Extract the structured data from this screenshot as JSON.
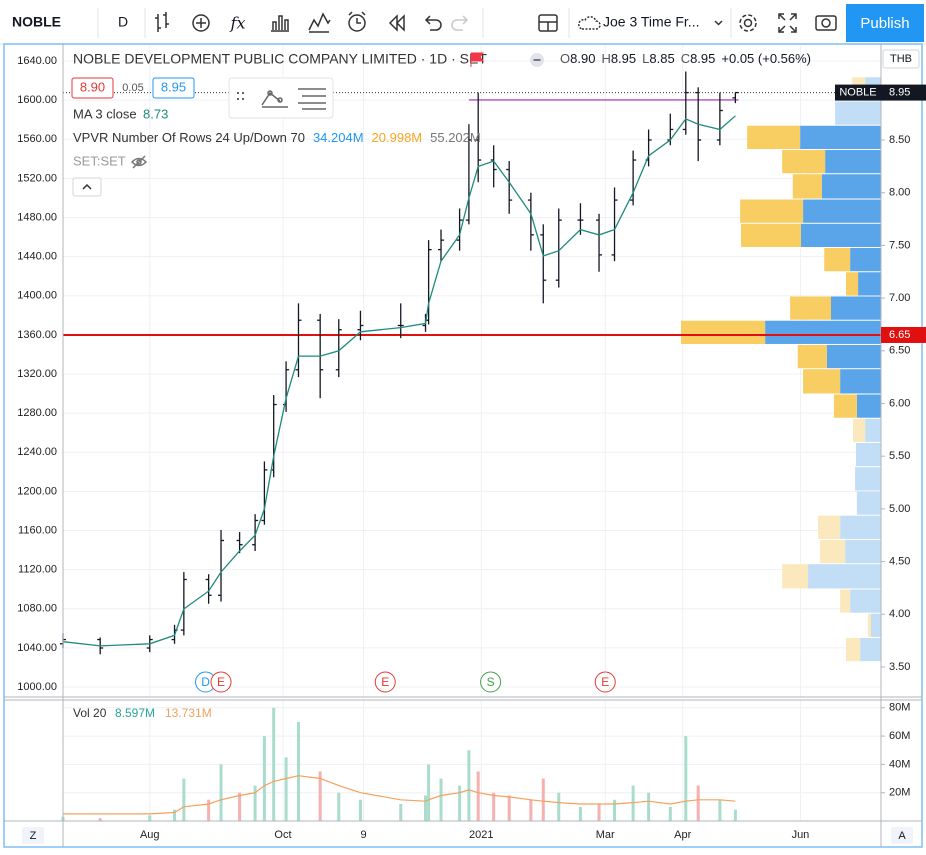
{
  "toolbar": {
    "symbol": "NOBLE",
    "interval": "D",
    "indicators_icon": "fx",
    "layout_name": "Joe 3 Time Fr...",
    "publish": "Publish"
  },
  "legend": {
    "title": "NOBLE DEVELOPMENT PUBLIC COMPANY LIMITED · 1D · SET",
    "ohlc": [
      [
        "O",
        "8.90"
      ],
      [
        "H",
        "8.95"
      ],
      [
        "L",
        "8.85"
      ],
      [
        "C",
        "8.95"
      ]
    ],
    "change": "+0.05 (+0.56%)",
    "bid": "8.90",
    "spread": "0.05",
    "ask": "8.95",
    "ma_name": "MA 3 close",
    "ma_value": "8.73",
    "vpvr_name": "VPVR Number Of Rows 24 Up/Down 70",
    "vpvr_up": "34.204M",
    "vpvr_down": "20.998M",
    "vpvr_total": "55.202M",
    "compare": "SET:SET",
    "currency": "THB",
    "vol_name": "Vol 20",
    "vol_value": "8.597M",
    "vol_ma": "13.731M"
  },
  "corner_left": "Z",
  "corner_right": "A",
  "chart_data": [
    {
      "type": "ohlc",
      "symbol_tag": "NOBLE",
      "last_price": 8.95,
      "bar_color": "#131722",
      "ma_color": "#1f8a7e",
      "x": [
        0,
        12,
        28,
        36,
        39,
        47,
        51,
        57,
        62,
        65,
        68,
        72,
        76,
        83,
        89,
        96,
        109,
        117,
        118,
        122,
        128,
        131,
        134,
        139,
        144,
        151,
        155,
        160,
        167,
        173,
        178,
        184,
        189,
        196,
        201,
        205,
        212,
        217
      ],
      "open": [
        3.72,
        3.76,
        3.68,
        3.76,
        3.85,
        4.33,
        4.18,
        4.7,
        4.66,
        4.89,
        5.37,
        5.99,
        6.32,
        6.79,
        6.32,
        6.7,
        6.74,
        6.74,
        6.79,
        7.46,
        7.55,
        7.74,
        8.5,
        8.31,
        8.22,
        7.93,
        7.6,
        7.17,
        7.74,
        7.74,
        7.41,
        7.93,
        8.31,
        8.5,
        8.6,
        8.95,
        8.5,
        8.9
      ],
      "high": [
        3.82,
        3.78,
        3.8,
        3.9,
        4.4,
        4.38,
        4.8,
        4.78,
        4.95,
        5.45,
        6.08,
        6.4,
        6.95,
        6.85,
        6.8,
        6.88,
        6.95,
        6.85,
        7.55,
        7.65,
        7.85,
        8.65,
        8.95,
        8.45,
        8.3,
        8.0,
        7.7,
        7.85,
        7.9,
        7.8,
        8.05,
        8.4,
        8.6,
        8.75,
        9.15,
        9.0,
        8.95,
        8.95
      ],
      "low": [
        3.68,
        3.62,
        3.64,
        3.72,
        3.8,
        4.1,
        4.12,
        4.58,
        4.6,
        4.85,
        5.3,
        5.92,
        6.25,
        6.05,
        6.25,
        6.6,
        6.62,
        6.68,
        6.75,
        7.35,
        7.45,
        7.7,
        8.1,
        8.05,
        7.8,
        7.45,
        6.95,
        7.1,
        7.6,
        7.25,
        7.35,
        7.88,
        8.25,
        8.45,
        8.55,
        8.3,
        8.45,
        8.85
      ],
      "close": [
        3.76,
        3.68,
        3.76,
        3.85,
        4.33,
        4.18,
        4.7,
        4.66,
        4.89,
        5.37,
        5.99,
        6.32,
        6.79,
        6.32,
        6.7,
        6.74,
        6.74,
        6.79,
        7.46,
        7.55,
        7.74,
        8.5,
        8.31,
        8.22,
        7.93,
        7.6,
        7.17,
        7.74,
        7.74,
        7.41,
        7.93,
        8.31,
        8.5,
        8.6,
        8.95,
        8.5,
        8.78,
        8.95
      ],
      "ma": [
        3.74,
        3.7,
        3.72,
        3.8,
        4.05,
        4.22,
        4.4,
        4.6,
        4.75,
        5.0,
        5.5,
        6.05,
        6.45,
        6.45,
        6.5,
        6.68,
        6.72,
        6.76,
        6.95,
        7.35,
        7.6,
        7.95,
        8.25,
        8.3,
        8.1,
        7.8,
        7.4,
        7.45,
        7.65,
        7.6,
        7.65,
        8.0,
        8.35,
        8.5,
        8.7,
        8.65,
        8.6,
        8.73
      ],
      "xlim": [
        0,
        264
      ],
      "xticks": [
        {
          "value": 28,
          "label": "Aug"
        },
        {
          "value": 71,
          "label": "Oct"
        },
        {
          "value": 97,
          "label": "9"
        },
        {
          "value": 135,
          "label": "2021"
        },
        {
          "value": 175,
          "label": "Mar"
        },
        {
          "value": 200,
          "label": "Apr"
        },
        {
          "value": 238,
          "label": "Jun"
        }
      ],
      "ylim": [
        3.215,
        9.392
      ],
      "yticks": [
        {
          "value": 3.5,
          "label": "3.50"
        },
        {
          "value": 4,
          "label": "4.00"
        },
        {
          "value": 4.5,
          "label": "4.50"
        },
        {
          "value": 5,
          "label": "5.00"
        },
        {
          "value": 5.5,
          "label": "5.50"
        },
        {
          "value": 6,
          "label": "6.00"
        },
        {
          "value": 6.5,
          "label": "6.50"
        },
        {
          "value": 7,
          "label": "7.00"
        },
        {
          "value": 7.5,
          "label": "7.50"
        },
        {
          "value": 8,
          "label": "8.00"
        },
        {
          "value": 8.5,
          "label": "8.50"
        }
      ],
      "y2lim": [
        989.8,
        1655.4
      ],
      "y2ticks": [
        {
          "value": 1000,
          "label": "1000.00"
        },
        {
          "value": 1040,
          "label": "1040.00"
        },
        {
          "value": 1080,
          "label": "1080.00"
        },
        {
          "value": 1120,
          "label": "1120.00"
        },
        {
          "value": 1160,
          "label": "1160.00"
        },
        {
          "value": 1200,
          "label": "1200.00"
        },
        {
          "value": 1240,
          "label": "1240.00"
        },
        {
          "value": 1280,
          "label": "1280.00"
        },
        {
          "value": 1320,
          "label": "1320.00"
        },
        {
          "value": 1360,
          "label": "1360.00"
        },
        {
          "value": 1400,
          "label": "1400.00"
        },
        {
          "value": 1440,
          "label": "1440.00"
        },
        {
          "value": 1480,
          "label": "1480.00"
        },
        {
          "value": 1520,
          "label": "1520.00"
        },
        {
          "value": 1560,
          "label": "1560.00"
        },
        {
          "value": 1600,
          "label": "1600.00"
        },
        {
          "value": 1640,
          "label": "1640.00"
        }
      ],
      "grid": true,
      "hlines": [
        {
          "value": 6.65,
          "color": "#e01010"
        },
        {
          "value": 8.88,
          "color": "#9c27b0",
          "x": [
            131,
            218
          ]
        }
      ],
      "events": [
        {
          "label": "D",
          "x": 46,
          "color": "#2196f3"
        },
        {
          "label": "E",
          "x": 51,
          "color": "#e53935"
        },
        {
          "label": "E",
          "x": 104,
          "color": "#e53935"
        },
        {
          "label": "S",
          "x": 138,
          "color": "#43a047"
        },
        {
          "label": "E",
          "x": 175,
          "color": "#e53935"
        }
      ],
      "volume_profile": {
        "bins": [
          3.55,
          3.78,
          4.01,
          4.24,
          4.48,
          4.71,
          4.94,
          5.17,
          5.4,
          5.63,
          5.86,
          6.09,
          6.33,
          6.56,
          6.79,
          7.02,
          7.25,
          7.48,
          7.71,
          7.94,
          8.18,
          8.41,
          8.64,
          8.87,
          9.1
        ],
        "up": [
          0.71,
          0.34,
          1.05,
          2.48,
          1.22,
          1.39,
          0.82,
          0.88,
          0.85,
          0.54,
          0.82,
          1.39,
          1.84,
          3.94,
          1.7,
          0.78,
          1.05,
          2.72,
          2.65,
          2.01,
          1.9,
          2.75,
          1.56,
          0.54
        ],
        "down": [
          0.48,
          0.1,
          0.34,
          0.88,
          0.85,
          0.75,
          0,
          0,
          0,
          0.41,
          0.78,
          1.26,
          0.99,
          2.86,
          1.39,
          0.41,
          0.88,
          2.04,
          2.14,
          0.99,
          1.46,
          1.8,
          0,
          0.44
        ],
        "value_area": [
          5.86,
          8.64
        ],
        "up_color": "#5aa5ea",
        "down_color": "#f8cd62",
        "up_color_outside": "#c2ddf6",
        "down_color_outside": "#fbe9bd"
      }
    },
    {
      "type": "bar",
      "up_color": "#a9dccd",
      "down_color": "#f5b0b0",
      "ma_color": "#f4a15d",
      "values": [
        3,
        2,
        4,
        8,
        30,
        15,
        40,
        20,
        25,
        60,
        80,
        45,
        70,
        35,
        20,
        15,
        12,
        18,
        40,
        30,
        25,
        50,
        35,
        20,
        18,
        15,
        30,
        20,
        10,
        12,
        15,
        25,
        20,
        10,
        60,
        25,
        15,
        8
      ],
      "ma": [
        5,
        5,
        5,
        6,
        10,
        12,
        15,
        18,
        20,
        25,
        28,
        30,
        32,
        30,
        25,
        20,
        15,
        14,
        15,
        18,
        20,
        22,
        20,
        18,
        17,
        15,
        14,
        13,
        12,
        12,
        12,
        13,
        14,
        12,
        14,
        15,
        15,
        14
      ],
      "ylim": [
        0,
        85.5
      ],
      "yticks": [
        {
          "value": 20,
          "label": "20M"
        },
        {
          "value": 40,
          "label": "40M"
        },
        {
          "value": 60,
          "label": "60M"
        },
        {
          "value": 80,
          "label": "80M"
        }
      ]
    }
  ]
}
